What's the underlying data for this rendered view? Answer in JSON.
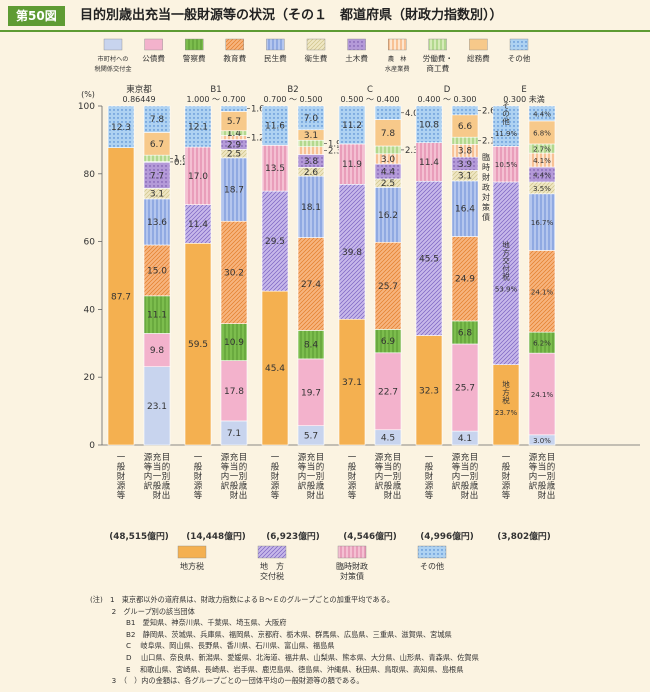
{
  "header": {
    "badge": "第50図",
    "title": "目的別歳出充当一般財源等の状況（その１　都道府県（財政力指数別））"
  },
  "patterns": {
    "mun": {
      "bg": "#c8d4ee",
      "fg": "#c8d4ee",
      "type": "solid"
    },
    "kou": {
      "bg": "#f3b2cc",
      "fg": "#f3b2cc",
      "type": "solid"
    },
    "kei": {
      "bg": "#7cbd4d",
      "fg": "#4f8f2a",
      "type": "vlines"
    },
    "kyo": {
      "bg": "#f7b47e",
      "fg": "#e27d2a",
      "type": "diag"
    },
    "min": {
      "bg": "#b4c6ee",
      "fg": "#5b7ed0",
      "type": "vlines"
    },
    "eis": {
      "bg": "#efe7c4",
      "fg": "#cfc389",
      "type": "diag"
    },
    "dob": {
      "bg": "#b49ad8",
      "fg": "#6b4aa2",
      "type": "dots"
    },
    "nor": {
      "bg": "#fde6d0",
      "fg": "#f08a3c",
      "type": "vlines"
    },
    "rod": {
      "bg": "#d6eab8",
      "fg": "#7cbd4d",
      "type": "vlines"
    },
    "som": {
      "bg": "#f7c98a",
      "fg": "#f7c98a",
      "type": "solid"
    },
    "oth": {
      "bg": "#aed2f2",
      "fg": "#3a78c8",
      "type": "dots"
    },
    "chiho": {
      "bg": "#f4b050",
      "fg": "#f4b050",
      "type": "solid"
    },
    "kofu": {
      "bg": "#c7b8ea",
      "fg": "#7b63c2",
      "type": "diag"
    },
    "rinji": {
      "bg": "#f4c0d2",
      "fg": "#d96a98",
      "type": "vlines"
    },
    "hoka": {
      "bg": "#aed2f2",
      "fg": "#3a78c8",
      "type": "dots"
    }
  },
  "chart_data": {
    "type": "bar",
    "stacked": true,
    "percent_axis": true,
    "ylabel": "(%)",
    "ylim": [
      0,
      100
    ],
    "yticks": [
      0,
      20,
      40,
      60,
      80,
      100
    ],
    "legend_top": [
      {
        "key": "mun",
        "label": "市町村への\n税関係交付金",
        "small": true
      },
      {
        "key": "kou",
        "label": "公債費"
      },
      {
        "key": "kei",
        "label": "警察費"
      },
      {
        "key": "kyo",
        "label": "教育費"
      },
      {
        "key": "min",
        "label": "民生費"
      },
      {
        "key": "eis",
        "label": "衛生費"
      },
      {
        "key": "dob",
        "label": "土木費"
      },
      {
        "key": "nor",
        "label": "農　林\n水産業費",
        "small": true
      },
      {
        "key": "rod",
        "label": "労働費・\n商工費"
      },
      {
        "key": "som",
        "label": "総務費"
      },
      {
        "key": "oth",
        "label": "その他"
      }
    ],
    "legend_bottom": [
      {
        "key": "chiho",
        "label": "地方税"
      },
      {
        "key": "kofu",
        "label": "地　方\n交付税"
      },
      {
        "key": "rinji",
        "label": "臨時財政\n対策債"
      },
      {
        "key": "hoka",
        "label": "その他"
      }
    ],
    "col_labels": [
      "一般財源等",
      "目的別歳出充当一般財源等内訳"
    ],
    "groups": [
      {
        "name": "東京都",
        "range": "0.86449",
        "total": "(48,515億円)",
        "source": [
          {
            "key": "chiho",
            "value": 87.7,
            "label": "87.7"
          },
          {
            "key": "hoka",
            "value": 12.3,
            "label": "12.3"
          }
        ],
        "breakdown": [
          {
            "key": "mun",
            "value": 23.1,
            "label": "23.1"
          },
          {
            "key": "kou",
            "value": 9.8,
            "label": "9.8"
          },
          {
            "key": "kei",
            "value": 11.1,
            "label": "11.1"
          },
          {
            "key": "kyo",
            "value": 15.0,
            "label": "15.0"
          },
          {
            "key": "min",
            "value": 13.6,
            "label": "13.6"
          },
          {
            "key": "eis",
            "value": 3.1,
            "label": "3.1"
          },
          {
            "key": "dob",
            "value": 7.7,
            "label": "7.7"
          },
          {
            "key": "nor",
            "value": 0.2,
            "label": "0.2",
            "callout": true
          },
          {
            "key": "rod",
            "value": 1.9,
            "label": "1.9",
            "callout": true
          },
          {
            "key": "som",
            "value": 6.7,
            "label": "6.7"
          },
          {
            "key": "oth",
            "value": 7.8,
            "label": "7.8"
          }
        ]
      },
      {
        "name": "B1",
        "range": "1.000 ～ 0.700",
        "total": "(14,448億円)",
        "source": [
          {
            "key": "chiho",
            "value": 59.5,
            "label": "59.5"
          },
          {
            "key": "kofu",
            "value": 11.4,
            "label": "11.4"
          },
          {
            "key": "rinji",
            "value": 17.0,
            "label": "17.0"
          },
          {
            "key": "hoka",
            "value": 12.1,
            "label": "12.1"
          }
        ],
        "breakdown": [
          {
            "key": "mun",
            "value": 7.1,
            "label": "7.1"
          },
          {
            "key": "kou",
            "value": 17.8,
            "label": "17.8"
          },
          {
            "key": "kei",
            "value": 10.9,
            "label": "10.9"
          },
          {
            "key": "kyo",
            "value": 30.2,
            "label": "30.2"
          },
          {
            "key": "min",
            "value": 18.7,
            "label": "18.7"
          },
          {
            "key": "eis",
            "value": 2.5,
            "label": "2.5"
          },
          {
            "key": "dob",
            "value": 2.9,
            "label": "2.9"
          },
          {
            "key": "nor",
            "value": 1.2,
            "label": "1.2",
            "callout": true
          },
          {
            "key": "rod",
            "value": 1.4,
            "label": "1.4"
          },
          {
            "key": "som",
            "value": 5.7,
            "label": "5.7"
          },
          {
            "key": "oth",
            "value": 1.6,
            "label": "1.6",
            "callout": true
          }
        ]
      },
      {
        "name": "B2",
        "range": "0.700 ～ 0.500",
        "total": "(6,923億円)",
        "source": [
          {
            "key": "chiho",
            "value": 45.4,
            "label": "45.4"
          },
          {
            "key": "kofu",
            "value": 29.5,
            "label": "29.5"
          },
          {
            "key": "rinji",
            "value": 13.5,
            "label": "13.5"
          },
          {
            "key": "hoka",
            "value": 11.6,
            "label": "11.6"
          }
        ],
        "breakdown": [
          {
            "key": "mun",
            "value": 5.7,
            "label": "5.7"
          },
          {
            "key": "kou",
            "value": 19.7,
            "label": "19.7"
          },
          {
            "key": "kei",
            "value": 8.4,
            "label": "8.4"
          },
          {
            "key": "kyo",
            "value": 27.4,
            "label": "27.4"
          },
          {
            "key": "min",
            "value": 18.1,
            "label": "18.1"
          },
          {
            "key": "eis",
            "value": 2.6,
            "label": "2.6"
          },
          {
            "key": "dob",
            "value": 3.8,
            "label": "3.8"
          },
          {
            "key": "nor",
            "value": 2.3,
            "label": "2.3",
            "callout": true
          },
          {
            "key": "rod",
            "value": 1.9,
            "label": "1.9",
            "callout": true
          },
          {
            "key": "som",
            "value": 3.1,
            "label": "3.1"
          },
          {
            "key": "oth",
            "value": 7.0,
            "label": "7.0"
          }
        ]
      },
      {
        "name": "C",
        "range": "0.500 ～ 0.400",
        "total": "(4,546億円)",
        "source": [
          {
            "key": "chiho",
            "value": 37.1,
            "label": "37.1"
          },
          {
            "key": "kofu",
            "value": 39.8,
            "label": "39.8"
          },
          {
            "key": "rinji",
            "value": 11.9,
            "label": "11.9"
          },
          {
            "key": "hoka",
            "value": 11.2,
            "label": "11.2"
          }
        ],
        "breakdown": [
          {
            "key": "mun",
            "value": 4.5,
            "label": "4.5"
          },
          {
            "key": "kou",
            "value": 22.7,
            "label": "22.7"
          },
          {
            "key": "kei",
            "value": 6.9,
            "label": "6.9"
          },
          {
            "key": "kyo",
            "value": 25.7,
            "label": "25.7"
          },
          {
            "key": "min",
            "value": 16.2,
            "label": "16.2"
          },
          {
            "key": "eis",
            "value": 2.5,
            "label": "2.5"
          },
          {
            "key": "dob",
            "value": 4.4,
            "label": "4.4"
          },
          {
            "key": "nor",
            "value": 3.0,
            "label": "3.0"
          },
          {
            "key": "rod",
            "value": 2.3,
            "label": "2.3",
            "callout": true
          },
          {
            "key": "som",
            "value": 7.8,
            "label": "7.8"
          },
          {
            "key": "oth",
            "value": 4.0,
            "label": "4.0",
            "callout": true
          }
        ]
      },
      {
        "name": "D",
        "range": "0.400 ～ 0.300",
        "total": "(4,996億円)",
        "source": [
          {
            "key": "chiho",
            "value": 32.3,
            "label": "32.3"
          },
          {
            "key": "kofu",
            "value": 45.5,
            "label": "45.5"
          },
          {
            "key": "rinji",
            "value": 11.4,
            "label": "11.4"
          },
          {
            "key": "hoka",
            "value": 10.8,
            "label": "10.8"
          }
        ],
        "breakdown": [
          {
            "key": "mun",
            "value": 4.1,
            "label": "4.1"
          },
          {
            "key": "kou",
            "value": 25.7,
            "label": "25.7"
          },
          {
            "key": "kei",
            "value": 6.8,
            "label": "6.8"
          },
          {
            "key": "kyo",
            "value": 24.9,
            "label": "24.9"
          },
          {
            "key": "min",
            "value": 16.4,
            "label": "16.4"
          },
          {
            "key": "eis",
            "value": 3.1,
            "label": "3.1"
          },
          {
            "key": "dob",
            "value": 3.9,
            "label": "3.9"
          },
          {
            "key": "nor",
            "value": 3.8,
            "label": "3.8"
          },
          {
            "key": "rod",
            "value": 2.1,
            "label": "2.1",
            "callout": true
          },
          {
            "key": "som",
            "value": 6.6,
            "label": "6.6"
          },
          {
            "key": "oth",
            "value": 2.6,
            "label": "2.6",
            "callout": true
          }
        ],
        "side_note": "臨時財政対策債"
      },
      {
        "name": "E",
        "range": "0.300 未満",
        "total": "(3,802億円)",
        "pct_suffix": true,
        "source": [
          {
            "key": "chiho",
            "value": 23.7,
            "label": "23.7%",
            "inner": "地方税"
          },
          {
            "key": "kofu",
            "value": 53.9,
            "label": "53.9%",
            "inner": "地方交付税"
          },
          {
            "key": "rinji",
            "value": 10.5,
            "label": "10.5%"
          },
          {
            "key": "hoka",
            "value": 11.9,
            "label": "11.9%",
            "inner": "その他"
          }
        ],
        "breakdown": [
          {
            "key": "mun",
            "value": 3.0,
            "label": "3.0%"
          },
          {
            "key": "kou",
            "value": 24.1,
            "label": "24.1%"
          },
          {
            "key": "kei",
            "value": 6.2,
            "label": "6.2%"
          },
          {
            "key": "kyo",
            "value": 24.1,
            "label": "24.1%"
          },
          {
            "key": "min",
            "value": 16.7,
            "label": "16.7%"
          },
          {
            "key": "eis",
            "value": 3.5,
            "label": "3.5%"
          },
          {
            "key": "dob",
            "value": 4.4,
            "label": "4.4%"
          },
          {
            "key": "nor",
            "value": 4.1,
            "label": "4.1%"
          },
          {
            "key": "rod",
            "value": 2.7,
            "label": "2.7%"
          },
          {
            "key": "som",
            "value": 6.8,
            "label": "6.8%"
          },
          {
            "key": "oth",
            "value": 4.4,
            "label": "4.4%"
          }
        ]
      }
    ]
  },
  "notes": [
    "(注)　1　東京都以外の道府県は、財政力指数によるＢ～Ｅのグループごとの加重平均である。",
    "　　　2　グループ別の該当団体",
    "　　　　　B1　愛知県、神奈川県、千葉県、埼玉県、大阪府",
    "　　　　　B2　静岡県、茨城県、兵庫県、福岡県、京都府、栃木県、群馬県、広島県、三重県、滋賀県、宮城県",
    "　　　　　C　 岐阜県、岡山県、長野県、香川県、石川県、富山県、福島県",
    "　　　　　D　 山口県、奈良県、新潟県、愛媛県、北海道、福井県、山梨県、熊本県、大分県、山形県、青森県、佐賀県",
    "　　　　　E　 和歌山県、宮崎県、長崎県、岩手県、鹿児島県、徳島県、沖縄県、秋田県、鳥取県、高知県、島根県",
    "　　　3　（　）内の金額は、各グループごとの一団体平均の一般財源等の額である。"
  ]
}
